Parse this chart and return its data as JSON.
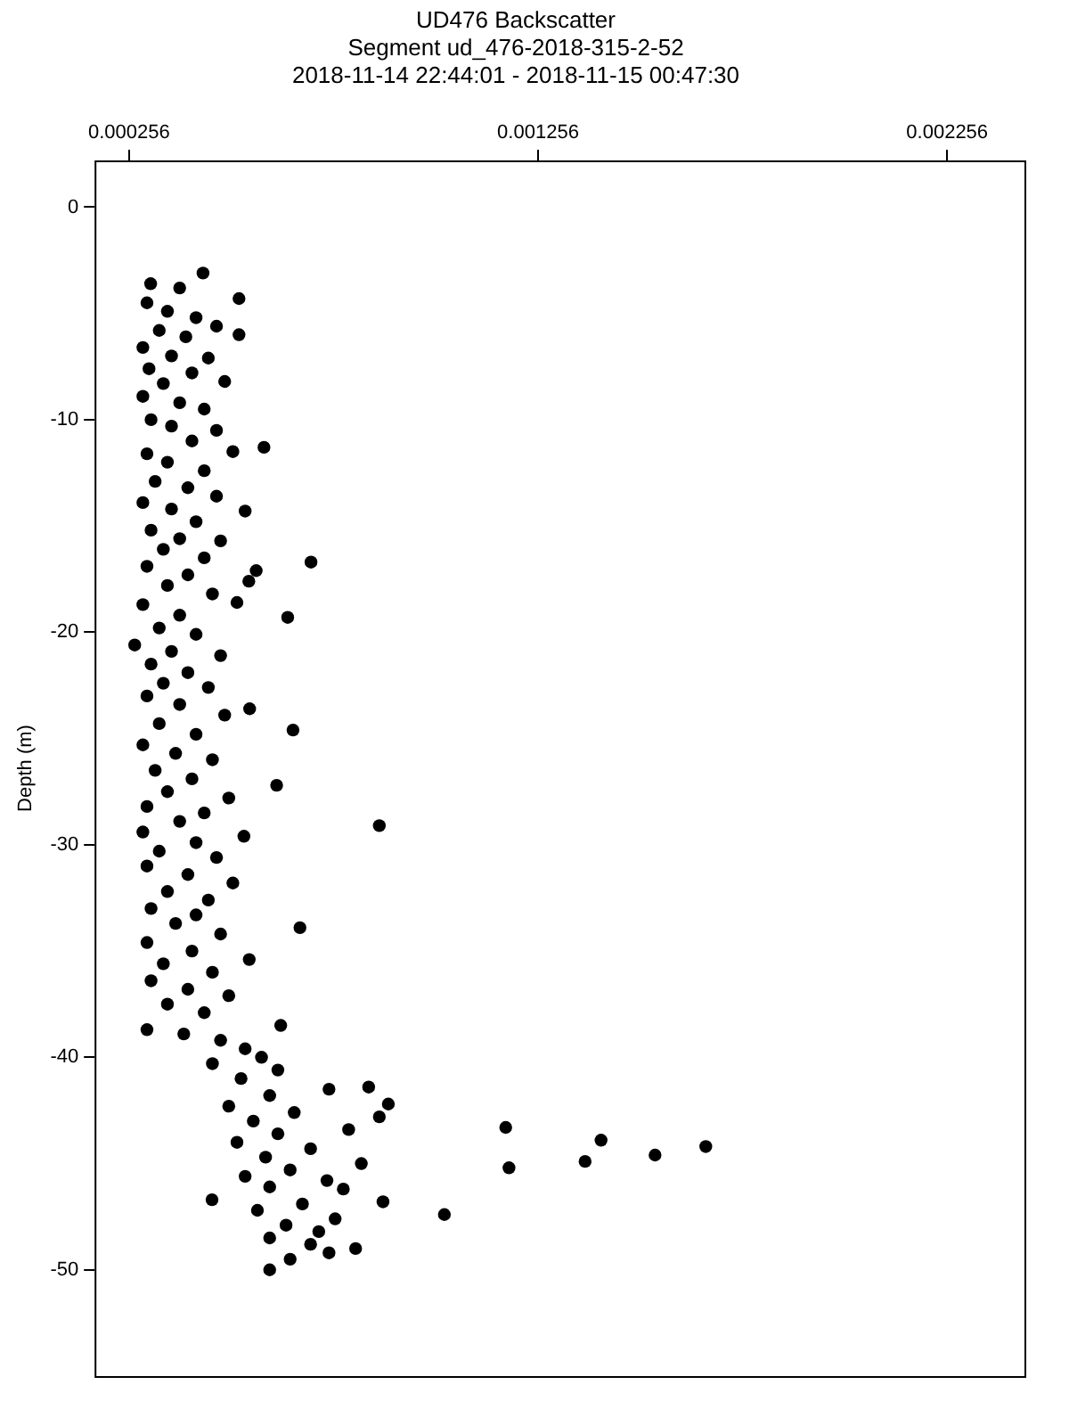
{
  "chart_data": {
    "type": "scatter",
    "title": "UD476 Backscatter",
    "subtitle": "Segment ud_476-2018-315-2-52\n2018-11-14 22:44:01 - 2018-11-15 00:47:30",
    "ylabel": "Depth (m)",
    "xlim": [
      0.000172,
      0.002445
    ],
    "xticks": [
      0.000256,
      0.001256,
      0.002256
    ],
    "ylim": [
      -55,
      2.2
    ],
    "yticks": [
      0,
      -10,
      -20,
      -30,
      -40,
      -50
    ],
    "grid": false,
    "legend": false,
    "marker": "circle",
    "series": [
      {
        "color": "#000000",
        "x": [
          0.000437,
          0.000309,
          0.00038,
          0.000525,
          0.0003,
          0.00035,
          0.00042,
          0.00047,
          0.00033,
          0.000395,
          0.000525,
          0.00029,
          0.00036,
          0.00045,
          0.000305,
          0.00041,
          0.00034,
          0.00049,
          0.00029,
          0.00038,
          0.00044,
          0.00031,
          0.00036,
          0.00047,
          0.00041,
          0.000586,
          0.0003,
          0.00051,
          0.00035,
          0.00044,
          0.00032,
          0.0004,
          0.00047,
          0.00029,
          0.00036,
          0.00054,
          0.00042,
          0.00031,
          0.00038,
          0.00048,
          0.00034,
          0.00044,
          0.000701,
          0.0003,
          0.000567,
          0.0004,
          0.000549,
          0.00035,
          0.00046,
          0.00052,
          0.00029,
          0.000644,
          0.00038,
          0.00033,
          0.00042,
          0.00027,
          0.00036,
          0.00048,
          0.00031,
          0.0004,
          0.00034,
          0.00045,
          0.0003,
          0.000551,
          0.00038,
          0.00049,
          0.00033,
          0.000657,
          0.00042,
          0.00029,
          0.00037,
          0.00046,
          0.00032,
          0.00041,
          0.000617,
          0.00035,
          0.0005,
          0.0003,
          0.00044,
          0.000868,
          0.00038,
          0.00029,
          0.000537,
          0.00042,
          0.00033,
          0.00047,
          0.0003,
          0.0004,
          0.00051,
          0.00035,
          0.00045,
          0.00031,
          0.00042,
          0.000674,
          0.00037,
          0.00048,
          0.0003,
          0.00041,
          0.00055,
          0.00034,
          0.00046,
          0.00031,
          0.0004,
          0.0005,
          0.00035,
          0.00044,
          0.000627,
          0.0003,
          0.00039,
          0.00048,
          0.00054,
          0.00058,
          0.00046,
          0.00062,
          0.00053,
          0.000745,
          0.000842,
          0.0006,
          0.00089,
          0.0005,
          0.00066,
          0.000868,
          0.00056,
          0.001177,
          0.000793,
          0.00062,
          0.00141,
          0.00052,
          0.001666,
          0.0007,
          0.001542,
          0.00059,
          0.001371,
          0.000824,
          0.001185,
          0.00065,
          0.00054,
          0.00074,
          0.0006,
          0.00078,
          0.000459,
          0.000877,
          0.00068,
          0.00057,
          0.001027,
          0.00076,
          0.00064,
          0.00072,
          0.0006,
          0.0007,
          0.00081,
          0.000745,
          0.00065,
          0.0006
        ],
        "values": [
          -3.1,
          -3.6,
          -3.8,
          -4.3,
          -4.5,
          -4.9,
          -5.2,
          -5.6,
          -5.8,
          -6.1,
          -6.0,
          -6.6,
          -7.0,
          -7.1,
          -7.6,
          -7.8,
          -8.3,
          -8.2,
          -8.9,
          -9.2,
          -9.5,
          -10.0,
          -10.3,
          -10.5,
          -11.0,
          -11.3,
          -11.6,
          -11.5,
          -12.0,
          -12.4,
          -12.9,
          -13.2,
          -13.6,
          -13.9,
          -14.2,
          -14.3,
          -14.8,
          -15.2,
          -15.6,
          -15.7,
          -16.1,
          -16.5,
          -16.7,
          -16.9,
          -17.1,
          -17.3,
          -17.6,
          -17.8,
          -18.2,
          -18.6,
          -18.7,
          -19.3,
          -19.2,
          -19.8,
          -20.1,
          -20.6,
          -20.9,
          -21.1,
          -21.5,
          -21.9,
          -22.4,
          -22.6,
          -23.0,
          -23.6,
          -23.4,
          -23.9,
          -24.3,
          -24.6,
          -24.8,
          -25.3,
          -25.7,
          -26.0,
          -26.5,
          -26.9,
          -27.2,
          -27.5,
          -27.8,
          -28.2,
          -28.5,
          -29.1,
          -28.9,
          -29.4,
          -29.6,
          -29.9,
          -30.3,
          -30.6,
          -31.0,
          -31.4,
          -31.8,
          -32.2,
          -32.6,
          -33.0,
          -33.3,
          -33.9,
          -33.7,
          -34.2,
          -34.6,
          -35.0,
          -35.4,
          -35.6,
          -36.0,
          -36.4,
          -36.8,
          -37.1,
          -37.5,
          -37.9,
          -38.5,
          -38.7,
          -38.9,
          -39.2,
          -39.6,
          -40.0,
          -40.3,
          -40.6,
          -41.0,
          -41.5,
          -41.4,
          -41.8,
          -42.2,
          -42.3,
          -42.6,
          -42.8,
          -43.0,
          -43.3,
          -43.4,
          -43.6,
          -43.9,
          -44.0,
          -44.2,
          -44.3,
          -44.6,
          -44.7,
          -44.9,
          -45.0,
          -45.2,
          -45.3,
          -45.6,
          -45.8,
          -46.1,
          -46.2,
          -46.7,
          -46.8,
          -46.9,
          -47.2,
          -47.4,
          -47.6,
          -47.9,
          -48.2,
          -48.5,
          -48.8,
          -49.0,
          -49.2,
          -49.5,
          -50.0
        ]
      }
    ]
  }
}
